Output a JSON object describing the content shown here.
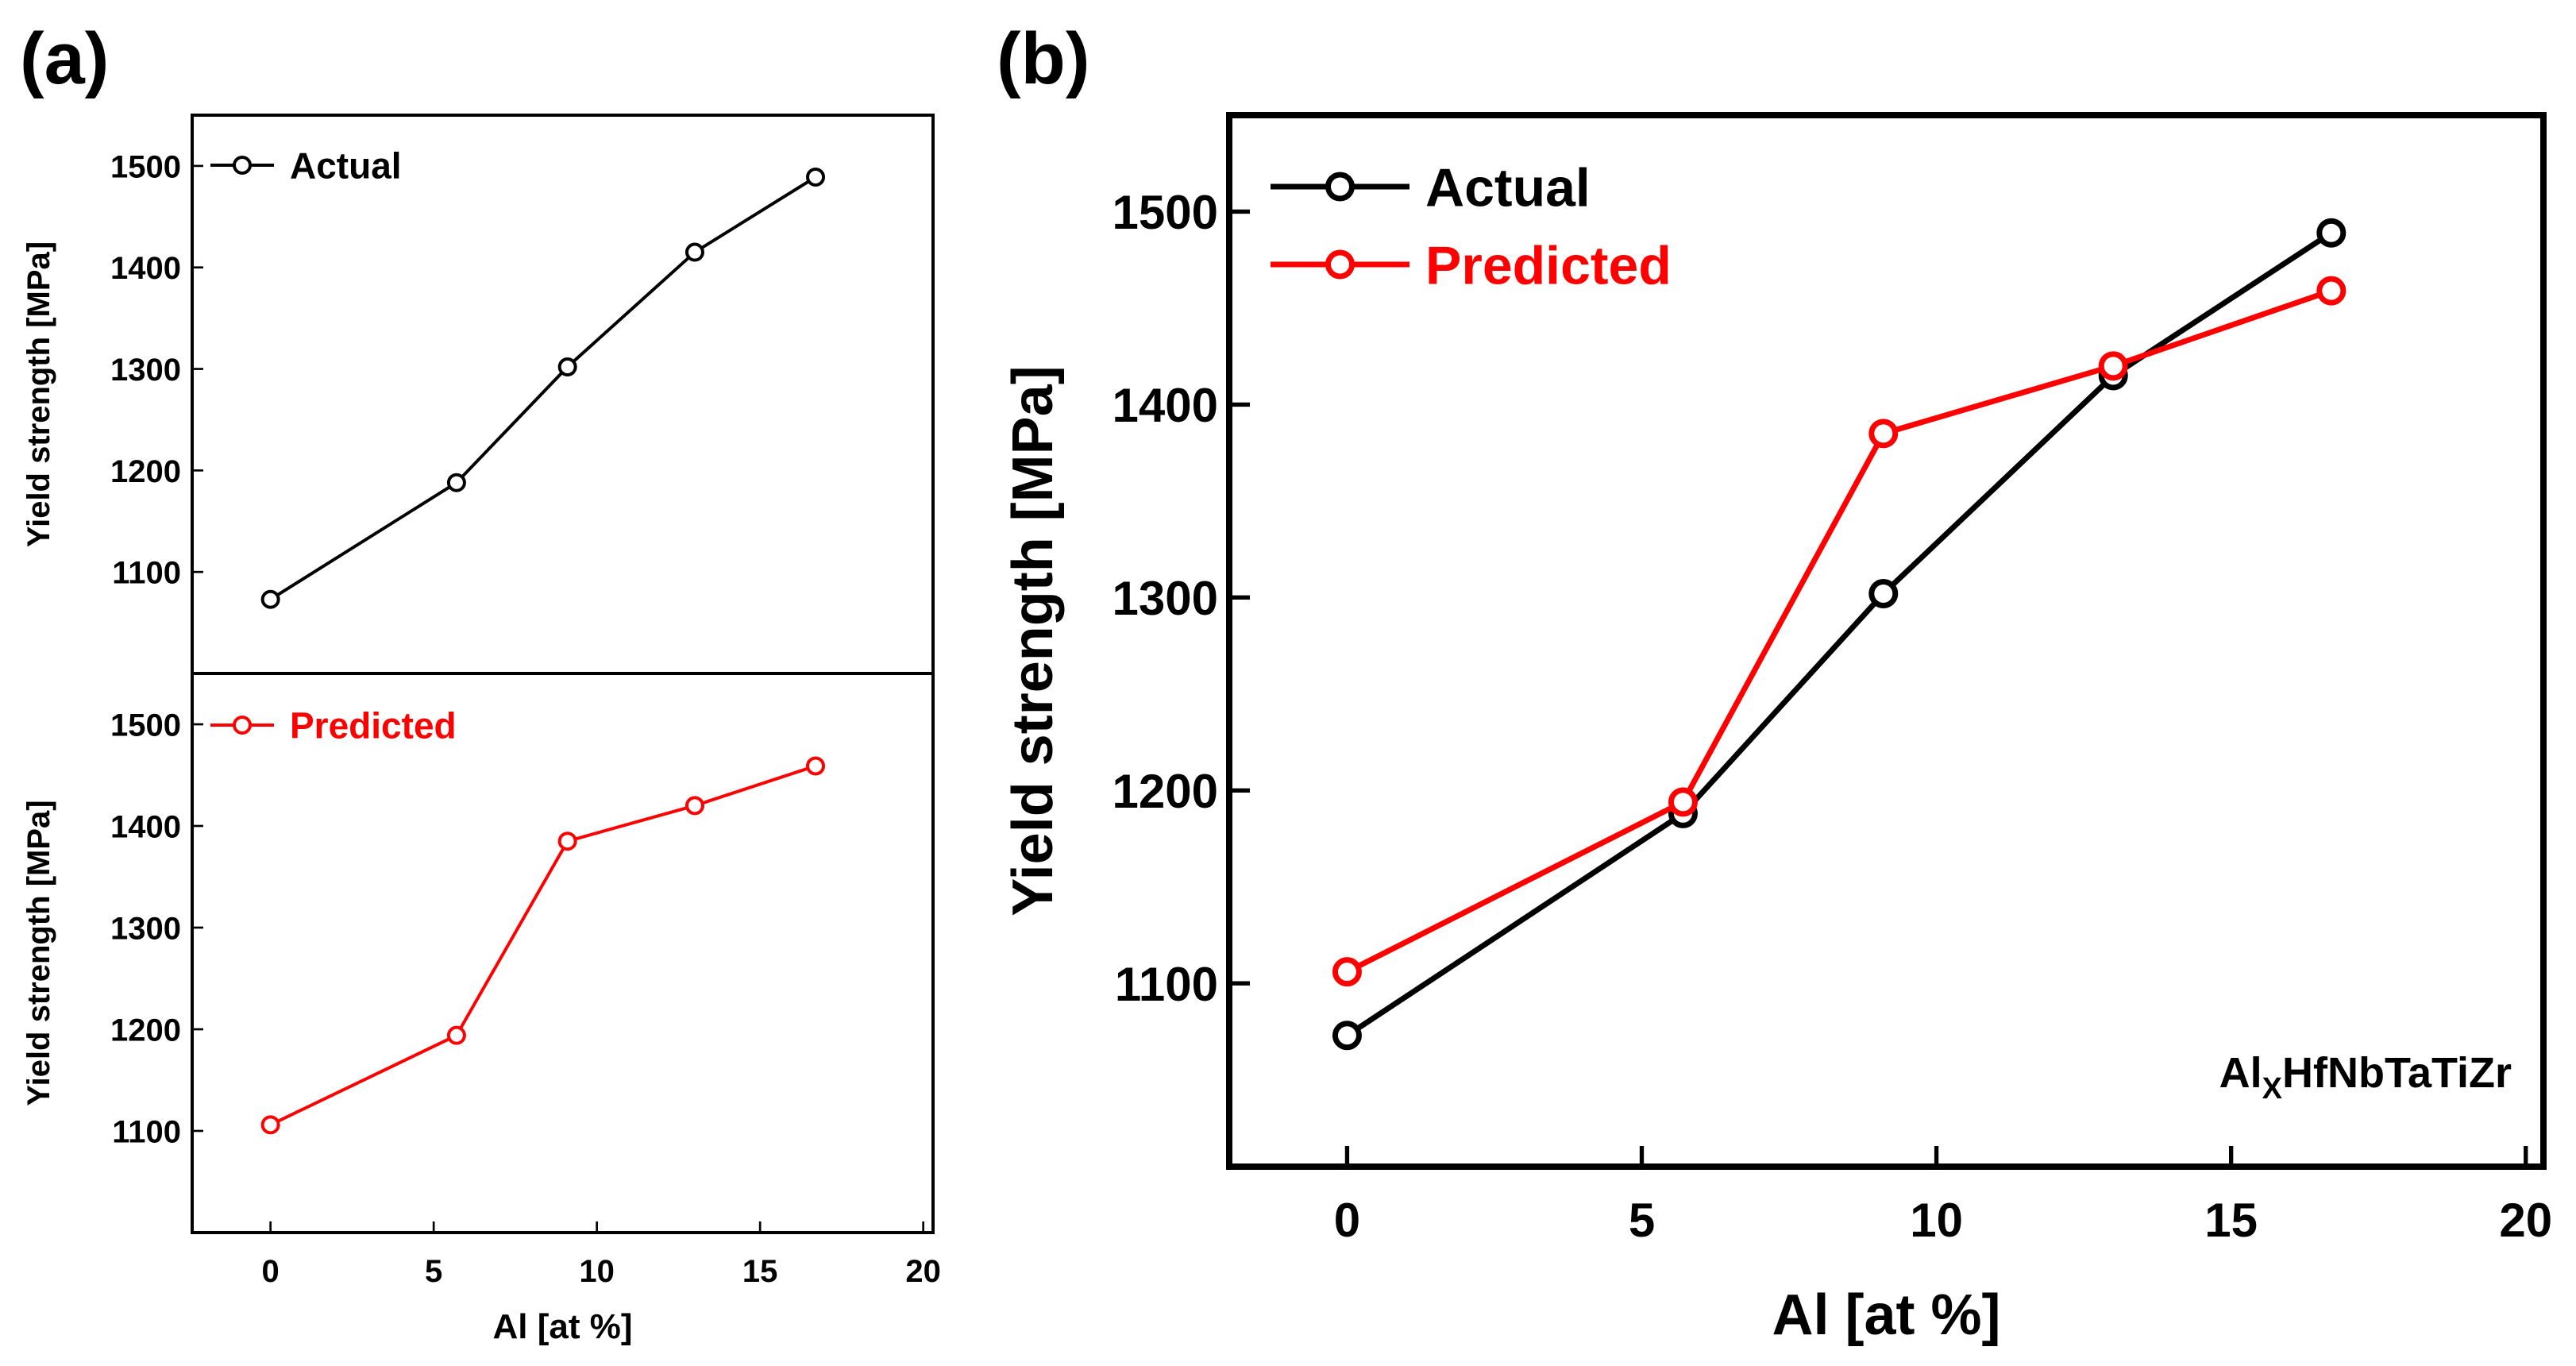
{
  "panel_labels": {
    "a": "(a)",
    "b": "(b)"
  },
  "chart_data": [
    {
      "type": "line",
      "panel": "a-top",
      "xlabel": "",
      "ylabel": "Yield strength [MPa]",
      "xlim": [
        -2.4,
        20.3
      ],
      "ylim": [
        1000,
        1550
      ],
      "yticks": [
        1100,
        1200,
        1300,
        1400,
        1500
      ],
      "xticks": [],
      "legend": "top-left",
      "series": [
        {
          "name": "Actual",
          "color": "#000000",
          "x": [
            0,
            5.7,
            9.1,
            13.0,
            16.7
          ],
          "y": [
            1073,
            1188,
            1302,
            1415,
            1489
          ]
        }
      ]
    },
    {
      "type": "line",
      "panel": "a-bottom",
      "xlabel": "Al [at %]",
      "ylabel": "Yield strength [MPa]",
      "xlim": [
        -2.4,
        20.3
      ],
      "ylim": [
        1000,
        1550
      ],
      "yticks": [
        1100,
        1200,
        1300,
        1400,
        1500
      ],
      "xticks": [
        0,
        5,
        10,
        15,
        20
      ],
      "legend": "top-left",
      "series": [
        {
          "name": "Predicted",
          "color": "#ff0000",
          "x": [
            0,
            5.7,
            9.1,
            13.0,
            16.7
          ],
          "y": [
            1106,
            1194,
            1385,
            1420,
            1459
          ]
        }
      ]
    },
    {
      "type": "line",
      "panel": "b",
      "xlabel": "Al [at %]",
      "ylabel": "Yield strength [MPa]",
      "xlim": [
        -2,
        20.3
      ],
      "ylim": [
        1005,
        1550
      ],
      "yticks": [
        1100,
        1200,
        1300,
        1400,
        1500
      ],
      "xticks": [
        0,
        5,
        10,
        15,
        20
      ],
      "legend": "top-left",
      "annotation": {
        "base": "Al",
        "sub": "X",
        "rest": "HfNbTaTiZr"
      },
      "series": [
        {
          "name": "Actual",
          "color": "#000000",
          "x": [
            0,
            5.7,
            9.1,
            13.0,
            16.7
          ],
          "y": [
            1073,
            1188,
            1302,
            1415,
            1489
          ]
        },
        {
          "name": "Predicted",
          "color": "#ff0000",
          "x": [
            0,
            5.7,
            9.1,
            13.0,
            16.7
          ],
          "y": [
            1106,
            1194,
            1385,
            1420,
            1459
          ]
        }
      ]
    }
  ]
}
